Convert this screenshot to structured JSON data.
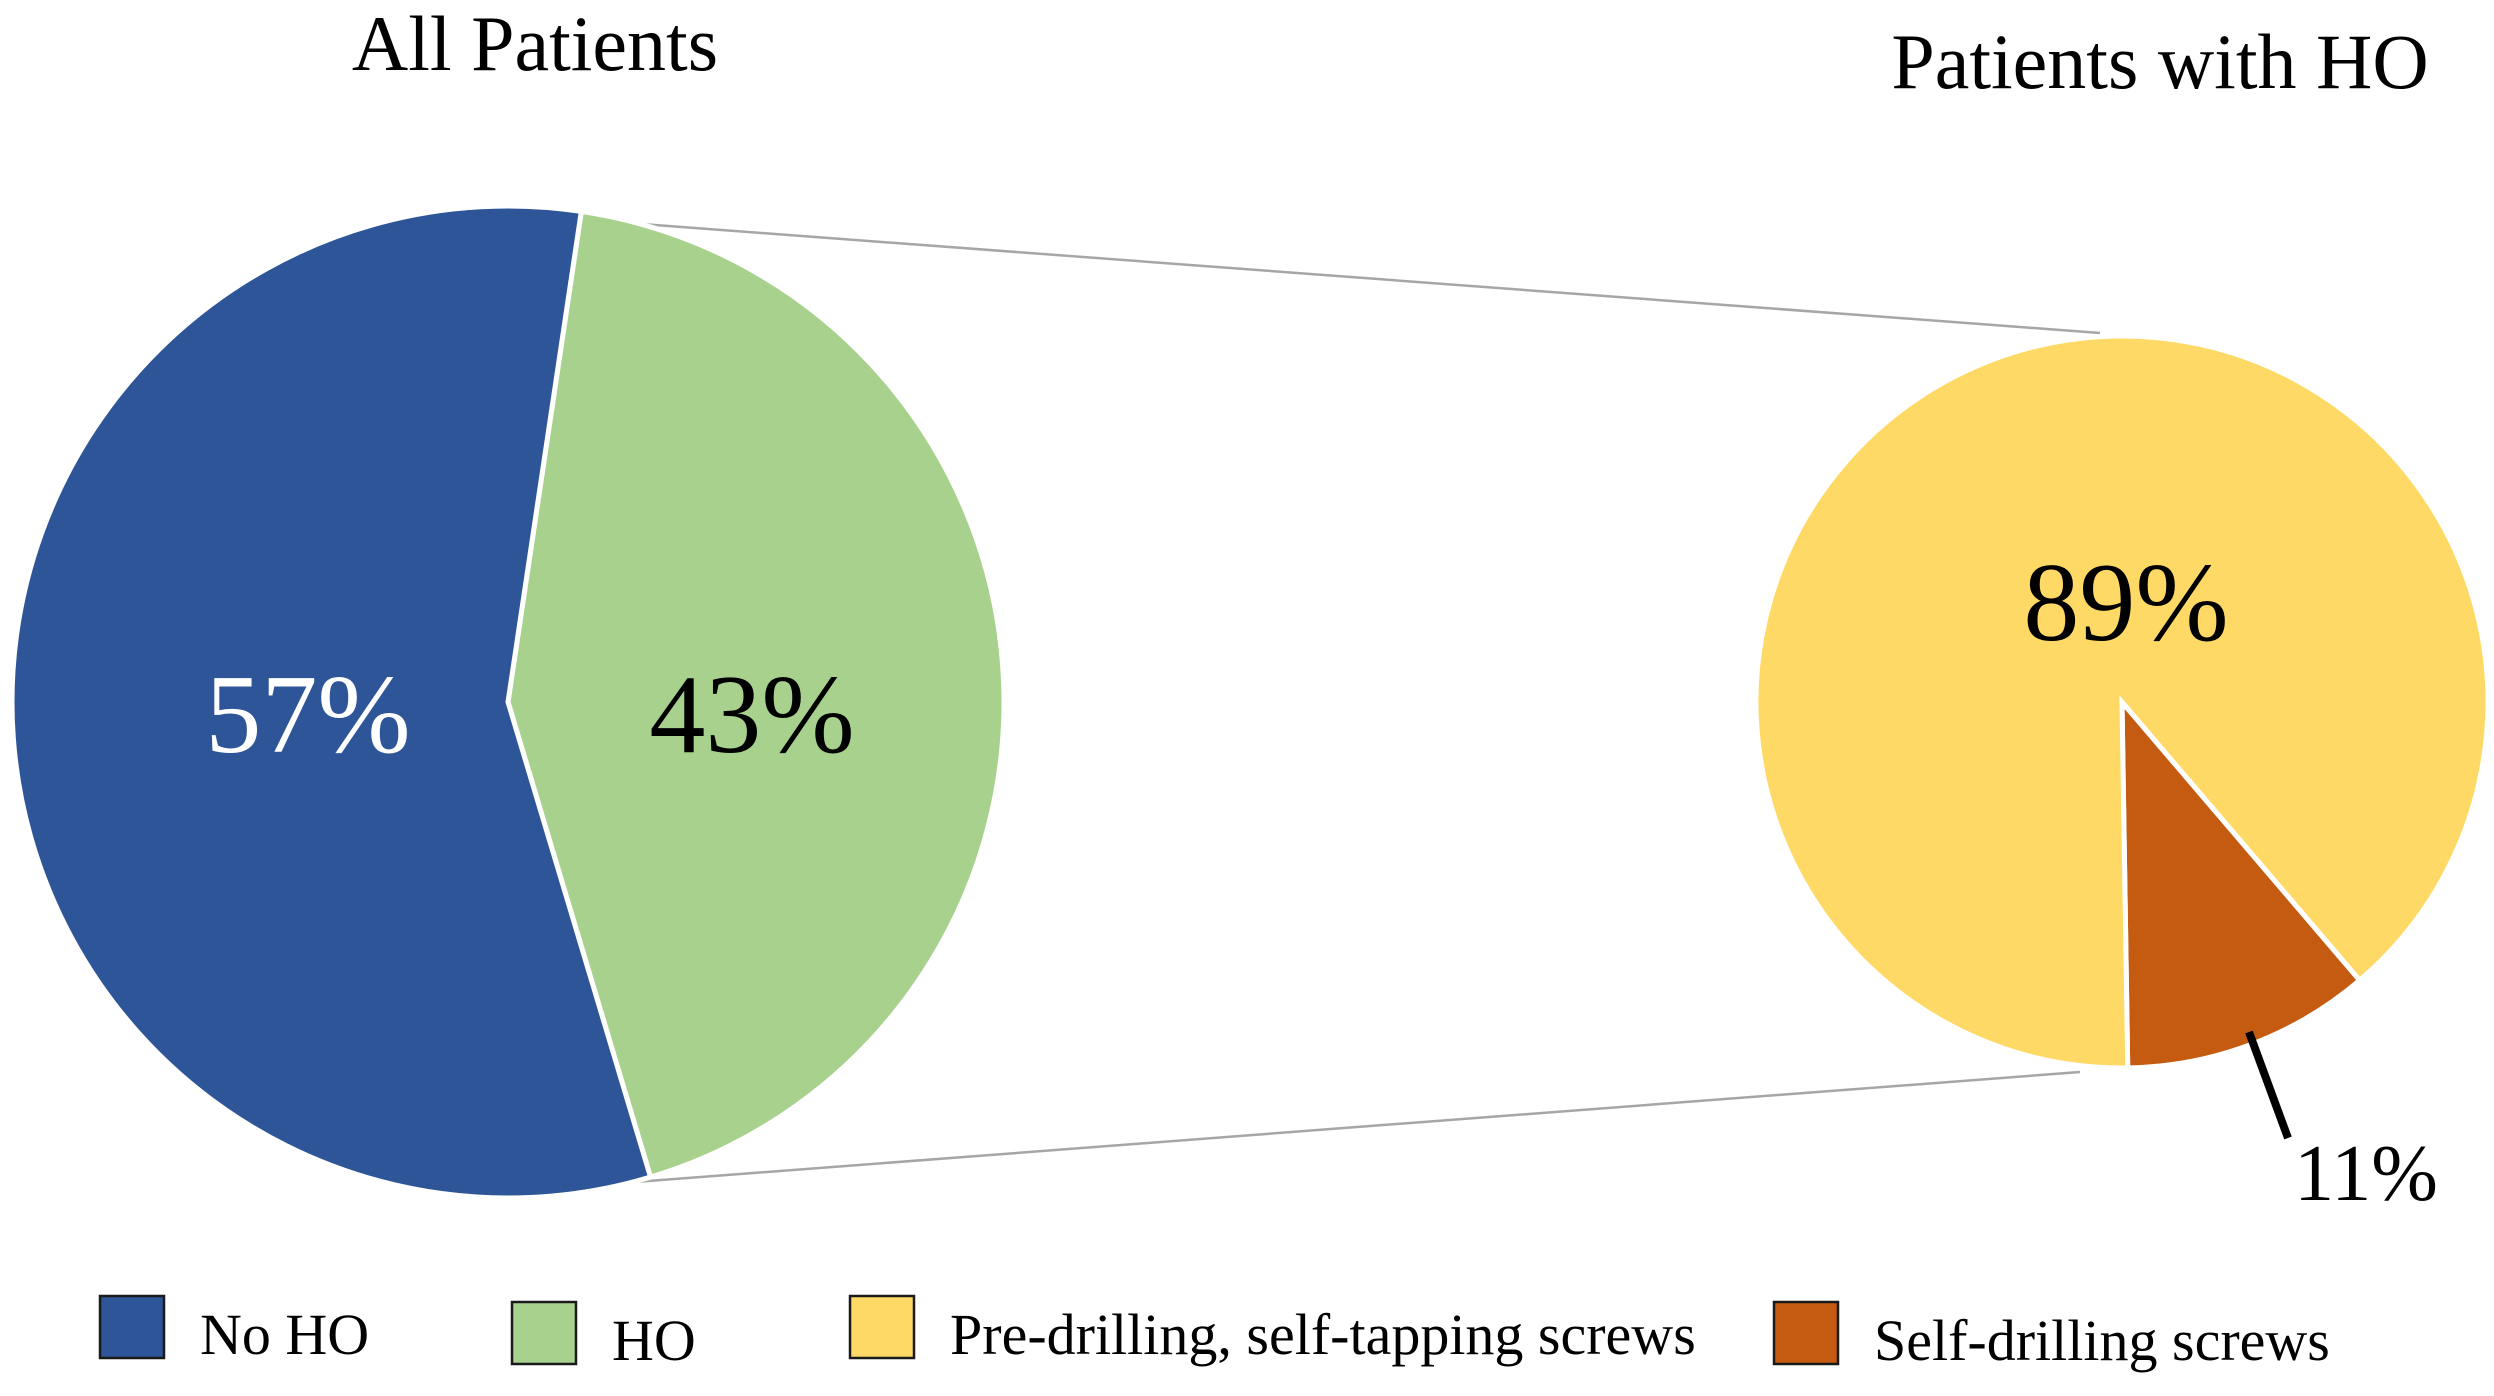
{
  "chart_data": [
    {
      "type": "pie",
      "title": "All Patients",
      "slices": [
        {
          "label": "No HO",
          "value": 57,
          "display": "57%",
          "color": "#2e5597",
          "label_color": "#ffffff"
        },
        {
          "label": "HO",
          "value": 43,
          "display": "43%",
          "color": "#a9d18e",
          "label_color": "#000000"
        }
      ]
    },
    {
      "type": "pie",
      "title": "Patients with HO",
      "slices": [
        {
          "label": "Pre-drilling, self-tapping screws",
          "value": 89,
          "display": "89%",
          "color": "#ffd966",
          "label_color": "#000000"
        },
        {
          "label": "Self-drilling screws",
          "value": 11,
          "display": "11%",
          "color": "#c55a11",
          "label_color": "#000000"
        }
      ]
    }
  ],
  "legend": [
    {
      "label": "No HO",
      "color": "#2e5597"
    },
    {
      "label": "HO",
      "color": "#a9d18e"
    },
    {
      "label": "Pre-drilling, self-tapping screws",
      "color": "#ffd966"
    },
    {
      "label": "Self-drilling screws",
      "color": "#c55a11"
    }
  ]
}
